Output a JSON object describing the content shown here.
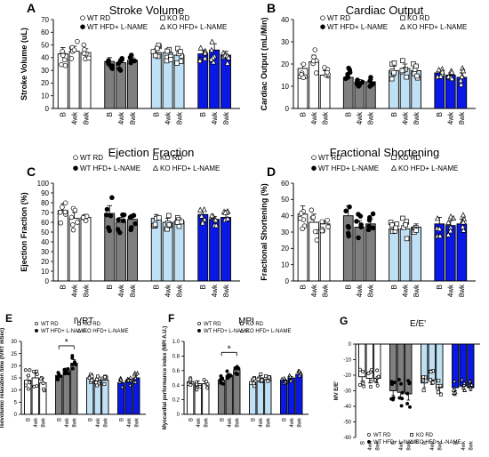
{
  "groups": [
    "WT RD",
    "WT HFD+ L-NAME",
    "KO RD",
    "KO HFD+ L-NAME"
  ],
  "group_colors": [
    "#ffffff",
    "#7f7f7f",
    "#bfe0f5",
    "#0a18e6"
  ],
  "group_symbols": [
    "circle-open",
    "circle-filled",
    "square-open",
    "triangle-open"
  ],
  "timepoints": [
    "B",
    "4wk",
    "8wk"
  ],
  "significance_marker": "*",
  "chart_data": [
    {
      "letter": "A",
      "type": "bar",
      "title": "Stroke Volume",
      "ylabel": "Stroke Volume (uL)",
      "ylim": [
        0,
        70
      ],
      "yticks": [
        0,
        10,
        20,
        30,
        40,
        50,
        60,
        70
      ],
      "series": [
        {
          "name": "WT RD",
          "values": [
            43,
            45,
            44
          ],
          "errors": [
            5,
            4,
            3
          ]
        },
        {
          "name": "WT HFD+ L-NAME",
          "values": [
            37,
            36,
            38
          ],
          "errors": [
            3,
            3,
            2
          ]
        },
        {
          "name": "KO RD",
          "values": [
            44,
            44,
            42
          ],
          "errors": [
            3,
            3,
            3
          ]
        },
        {
          "name": "KO HFD+ L-NAME",
          "values": [
            43,
            46,
            42
          ],
          "errors": [
            3,
            5,
            3
          ]
        }
      ]
    },
    {
      "letter": "B",
      "type": "bar",
      "title": "Cardiac Output",
      "ylabel": "Cardiac Output (mL/Min)",
      "ylim": [
        0,
        40
      ],
      "yticks": [
        0,
        10,
        20,
        30,
        40
      ],
      "series": [
        {
          "name": "WT RD",
          "values": [
            18,
            21,
            15
          ],
          "errors": [
            2,
            3,
            2
          ]
        },
        {
          "name": "WT HFD+ L-NAME",
          "values": [
            14,
            12,
            12
          ],
          "errors": [
            2,
            1,
            1
          ]
        },
        {
          "name": "KO RD",
          "values": [
            17,
            18,
            17
          ],
          "errors": [
            2,
            2,
            2
          ]
        },
        {
          "name": "KO HFD+ L-NAME",
          "values": [
            16,
            15,
            14
          ],
          "errors": [
            1,
            1,
            2
          ]
        }
      ]
    },
    {
      "letter": "C",
      "type": "bar",
      "title": "Ejection Fraction",
      "ylabel": "Ejection Fraction (%)",
      "ylim": [
        0,
        100
      ],
      "yticks": [
        0,
        10,
        20,
        30,
        40,
        50,
        60,
        70,
        80,
        90,
        100
      ],
      "series": [
        {
          "name": "WT RD",
          "values": [
            72,
            64,
            65
          ],
          "errors": [
            7,
            6,
            3
          ]
        },
        {
          "name": "WT HFD+ L-NAME",
          "values": [
            69,
            60,
            63
          ],
          "errors": [
            8,
            5,
            5
          ]
        },
        {
          "name": "KO RD",
          "values": [
            64,
            60,
            61
          ],
          "errors": [
            4,
            4,
            3
          ]
        },
        {
          "name": "KO HFD+ L-NAME",
          "values": [
            68,
            63,
            65
          ],
          "errors": [
            4,
            3,
            3
          ]
        }
      ]
    },
    {
      "letter": "D",
      "type": "bar",
      "title": "Fractional Shortening",
      "ylabel": "Fractional Shortening (%)",
      "ylim": [
        0,
        60
      ],
      "yticks": [
        0,
        10,
        20,
        30,
        40,
        50,
        60
      ],
      "series": [
        {
          "name": "WT RD",
          "values": [
            41,
            36,
            35
          ],
          "errors": [
            5,
            5,
            2
          ]
        },
        {
          "name": "WT HFD+ L-NAME",
          "values": [
            40,
            33,
            35
          ],
          "errors": [
            6,
            4,
            3
          ]
        },
        {
          "name": "KO RD",
          "values": [
            32,
            32,
            33
          ],
          "errors": [
            2,
            3,
            2
          ]
        },
        {
          "name": "KO HFD+ L-NAME",
          "values": [
            35,
            34,
            35
          ],
          "errors": [
            4,
            3,
            3
          ]
        }
      ]
    },
    {
      "letter": "E",
      "type": "bar",
      "title": "IVRT",
      "ylabel": "Isovolumic relaxation time (IVRT mSec)",
      "ylim": [
        0,
        30
      ],
      "yticks": [
        0,
        5,
        10,
        15,
        20,
        25,
        30
      ],
      "significance": {
        "series": 1,
        "from": 0,
        "to": 2
      },
      "series": [
        {
          "name": "WT RD",
          "values": [
            14,
            15,
            13
          ],
          "errors": [
            2,
            2,
            2
          ]
        },
        {
          "name": "WT HFD+ L-NAME",
          "values": [
            16,
            18,
            21
          ],
          "errors": [
            1,
            1,
            1.5
          ]
        },
        {
          "name": "KO RD",
          "values": [
            15,
            14,
            14
          ],
          "errors": [
            1,
            1,
            1
          ]
        },
        {
          "name": "KO HFD+ L-NAME",
          "values": [
            13,
            14,
            15
          ],
          "errors": [
            1,
            1,
            1
          ]
        }
      ]
    },
    {
      "letter": "F",
      "type": "bar",
      "title": "MPI",
      "ylabel": "Myocardial performance index (MPI A.U.)",
      "ylim": [
        0,
        1.0
      ],
      "yticks": [
        0,
        0.2,
        0.4,
        0.6,
        0.8,
        1.0
      ],
      "significance": {
        "series": 1,
        "from": 0,
        "to": 2
      },
      "series": [
        {
          "name": "WT RD",
          "values": [
            0.45,
            0.42,
            0.42
          ],
          "errors": [
            0.04,
            0.04,
            0.03
          ]
        },
        {
          "name": "WT HFD+ L-NAME",
          "values": [
            0.47,
            0.53,
            0.61
          ],
          "errors": [
            0.03,
            0.03,
            0.03
          ]
        },
        {
          "name": "KO RD",
          "values": [
            0.44,
            0.5,
            0.48
          ],
          "errors": [
            0.03,
            0.03,
            0.02
          ]
        },
        {
          "name": "KO HFD+ L-NAME",
          "values": [
            0.47,
            0.5,
            0.55
          ],
          "errors": [
            0.02,
            0.02,
            0.02
          ]
        }
      ]
    },
    {
      "letter": "G",
      "type": "bar",
      "title": "E/E'",
      "ylabel": "MV E/E'",
      "ylim": [
        -60,
        0
      ],
      "yticks": [
        0,
        -10,
        -20,
        -30,
        -40,
        -50,
        -60
      ],
      "series": [
        {
          "name": "WT RD",
          "values": [
            -21,
            -22,
            -22
          ],
          "errors": [
            3,
            3,
            3
          ]
        },
        {
          "name": "WT HFD+ L-NAME",
          "values": [
            -30,
            -31,
            -32
          ],
          "errors": [
            3,
            4,
            4
          ]
        },
        {
          "name": "KO RD",
          "values": [
            -25,
            -23,
            -28
          ],
          "errors": [
            3,
            3,
            3
          ]
        },
        {
          "name": "KO HFD+ L-NAME",
          "values": [
            -28,
            -27,
            -28
          ],
          "errors": [
            2,
            2,
            2
          ]
        }
      ]
    }
  ]
}
